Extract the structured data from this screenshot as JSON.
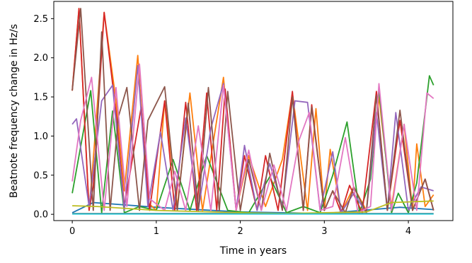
{
  "chart_data": {
    "type": "line",
    "xlabel": "Time in years",
    "ylabel": "Beatnote frequency change in Hz/s",
    "xlim": [
      -0.22,
      4.53
    ],
    "ylim": [
      -0.08,
      2.72
    ],
    "xticks": [
      0,
      1,
      2,
      3,
      4
    ],
    "xtick_labels": [
      "0",
      "1",
      "2",
      "3",
      "4"
    ],
    "yticks": [
      0.0,
      0.5,
      1.0,
      1.5,
      2.0,
      2.5
    ],
    "ytick_labels": [
      "0.0",
      "0.5",
      "1.0",
      "1.5",
      "2.0",
      "2.5"
    ],
    "grid": false,
    "series": [
      {
        "color": "#1f77b4",
        "x": [
          0.0,
          0.25,
          1.0,
          2.0,
          3.0,
          3.9,
          4.3
        ],
        "y": [
          0.02,
          0.15,
          0.09,
          0.03,
          0.01,
          0.09,
          0.06
        ]
      },
      {
        "color": "#ff7f0e",
        "x": [
          0.0,
          0.08,
          0.2,
          0.25,
          0.38,
          0.52,
          0.62,
          0.78,
          0.9,
          1.0,
          1.1,
          1.25,
          1.4,
          1.55,
          1.8,
          1.95,
          2.1,
          2.3,
          2.5,
          2.62,
          2.8,
          2.9,
          3.0,
          3.07,
          3.2,
          3.35,
          3.5,
          3.65,
          3.8,
          3.95,
          4.05,
          4.1,
          4.2,
          4.3
        ],
        "y": [
          1.58,
          2.63,
          0.05,
          0.7,
          2.58,
          1.45,
          0.3,
          2.03,
          0.15,
          0.05,
          1.45,
          0.1,
          1.55,
          0.05,
          1.75,
          0.05,
          0.75,
          0.1,
          0.7,
          1.55,
          0.05,
          1.35,
          0.05,
          0.83,
          0.02,
          0.35,
          0.05,
          1.5,
          0.1,
          1.15,
          0.05,
          0.9,
          0.1,
          0.25
        ]
      },
      {
        "color": "#2ca02c",
        "x": [
          0.0,
          0.22,
          0.35,
          0.48,
          0.62,
          0.8,
          1.0,
          1.2,
          1.4,
          1.6,
          1.85,
          2.1,
          2.35,
          2.55,
          2.75,
          2.95,
          3.1,
          3.27,
          3.42,
          3.55,
          3.65,
          3.8,
          3.88,
          4.0,
          4.1,
          4.25,
          4.3
        ],
        "y": [
          0.27,
          1.58,
          0.02,
          1.32,
          0.02,
          0.1,
          0.05,
          0.7,
          0.05,
          0.75,
          0.05,
          0.02,
          0.48,
          0.02,
          0.1,
          0.02,
          0.5,
          1.18,
          0.02,
          0.45,
          1.6,
          0.02,
          0.27,
          0.02,
          0.4,
          1.77,
          1.65
        ]
      },
      {
        "color": "#d62728",
        "x": [
          0.0,
          0.08,
          0.2,
          0.25,
          0.38,
          0.52,
          0.62,
          0.82,
          0.92,
          1.1,
          1.22,
          1.35,
          1.48,
          1.6,
          1.72,
          1.82,
          1.95,
          2.05,
          2.2,
          2.3,
          2.45,
          2.62,
          2.75,
          2.85,
          3.0,
          3.1,
          3.2,
          3.3,
          3.45,
          3.62,
          3.75,
          3.9,
          4.05,
          4.2,
          4.3
        ],
        "y": [
          1.58,
          2.63,
          0.05,
          0.35,
          2.58,
          1.3,
          0.1,
          1.37,
          0.05,
          1.45,
          0.05,
          1.43,
          0.05,
          1.55,
          0.05,
          1.6,
          0.05,
          0.75,
          0.05,
          0.75,
          0.05,
          1.57,
          0.05,
          1.4,
          0.05,
          0.3,
          0.02,
          0.37,
          0.02,
          1.57,
          0.05,
          1.2,
          0.05,
          0.45,
          0.05
        ]
      },
      {
        "color": "#9467bd",
        "x": [
          0.0,
          0.05,
          0.2,
          0.35,
          0.48,
          0.62,
          0.78,
          0.9,
          1.05,
          1.2,
          1.35,
          1.5,
          1.65,
          1.8,
          1.95,
          2.05,
          2.2,
          2.35,
          2.5,
          2.65,
          2.8,
          2.95,
          3.1,
          3.2,
          3.35,
          3.5,
          3.62,
          3.75,
          3.85,
          4.0,
          4.15,
          4.3
        ],
        "y": [
          1.15,
          1.22,
          0.1,
          1.45,
          1.65,
          0.05,
          1.9,
          0.1,
          1.05,
          0.05,
          1.23,
          0.05,
          1.1,
          1.67,
          0.05,
          0.88,
          0.05,
          0.65,
          0.1,
          1.45,
          1.43,
          0.05,
          0.8,
          0.02,
          0.27,
          0.02,
          1.3,
          0.05,
          1.3,
          0.05,
          0.35,
          0.3
        ]
      },
      {
        "color": "#8c564b",
        "x": [
          0.0,
          0.1,
          0.25,
          0.35,
          0.45,
          0.55,
          0.65,
          0.8,
          0.9,
          1.1,
          1.25,
          1.38,
          1.5,
          1.62,
          1.75,
          1.85,
          2.0,
          2.1,
          2.25,
          2.35,
          2.5,
          2.62,
          2.75,
          2.85,
          3.0,
          3.1,
          3.25,
          3.35,
          3.5,
          3.62,
          3.75,
          3.9,
          4.05,
          4.2,
          4.3
        ],
        "y": [
          1.58,
          2.63,
          0.05,
          2.33,
          0.05,
          1.25,
          1.62,
          0.05,
          1.2,
          1.63,
          0.05,
          1.42,
          0.05,
          1.62,
          0.05,
          1.57,
          0.05,
          0.7,
          0.05,
          0.78,
          0.05,
          1.5,
          0.05,
          1.37,
          0.05,
          0.3,
          0.02,
          0.35,
          0.02,
          1.52,
          0.05,
          1.33,
          0.05,
          0.45,
          0.05
        ]
      },
      {
        "color": "#e377c2",
        "x": [
          0.0,
          0.1,
          0.23,
          0.38,
          0.52,
          0.65,
          0.8,
          0.92,
          1.1,
          1.22,
          1.35,
          1.5,
          1.65,
          1.8,
          1.95,
          2.1,
          2.25,
          2.4,
          2.55,
          2.7,
          2.82,
          2.95,
          3.1,
          3.25,
          3.4,
          3.55,
          3.65,
          3.8,
          3.95,
          4.1,
          4.22,
          4.3
        ],
        "y": [
          0.42,
          1.2,
          1.75,
          0.05,
          1.62,
          0.1,
          1.92,
          0.2,
          0.05,
          0.55,
          0.05,
          1.13,
          0.05,
          1.65,
          0.05,
          0.82,
          0.05,
          0.63,
          0.05,
          0.95,
          1.3,
          0.05,
          0.1,
          0.98,
          0.02,
          0.1,
          1.67,
          0.05,
          1.15,
          0.05,
          1.55,
          1.48
        ]
      },
      {
        "color": "#7f7f7f",
        "x": [
          0.0,
          1.0,
          2.0,
          3.0,
          4.3
        ],
        "y": [
          0.01,
          0.01,
          0.01,
          0.01,
          0.01
        ]
      },
      {
        "color": "#bcbd22",
        "x": [
          0.0,
          0.3,
          1.0,
          2.0,
          2.5,
          3.5,
          3.8,
          4.3
        ],
        "y": [
          0.11,
          0.1,
          0.05,
          0.02,
          0.01,
          0.03,
          0.15,
          0.17
        ]
      },
      {
        "color": "#17becf",
        "x": [
          0.0,
          1.0,
          2.0,
          3.0,
          4.3
        ],
        "y": [
          0.005,
          0.005,
          0.005,
          0.005,
          0.005
        ]
      }
    ]
  }
}
